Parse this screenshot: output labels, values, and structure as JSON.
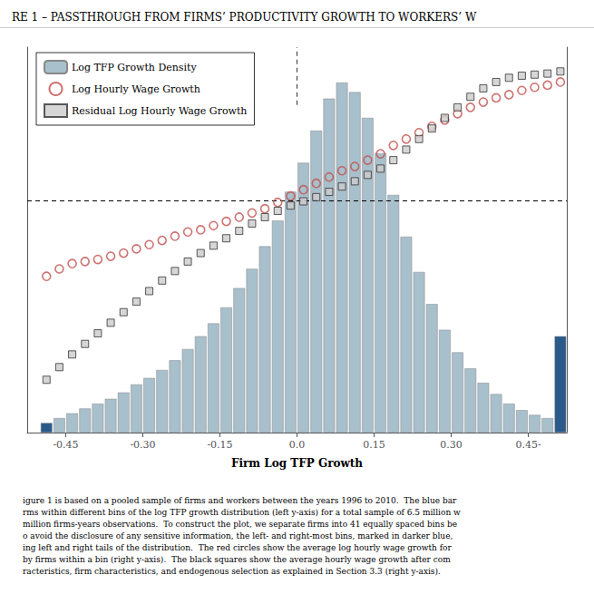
{
  "chart_data": {
    "type": "bar",
    "title": "RE 1 – PASSTHROUGH FROM FIRMS’ PRODUCTIVITY GROWTH TO WORKERS’ W",
    "x_label": "Firm Log TFP Growth",
    "x": [
      -0.4875,
      -0.4625,
      -0.4375,
      -0.4125,
      -0.3875,
      -0.3625,
      -0.3375,
      -0.3125,
      -0.2875,
      -0.2625,
      -0.2375,
      -0.2125,
      -0.1875,
      -0.1625,
      -0.1375,
      -0.1125,
      -0.0875,
      -0.0625,
      -0.0375,
      -0.0125,
      0.0125,
      0.0375,
      0.0625,
      0.0875,
      0.1125,
      0.1375,
      0.1625,
      0.1875,
      0.2125,
      0.2375,
      0.2625,
      0.2875,
      0.3125,
      0.3375,
      0.3625,
      0.3875,
      0.4125,
      0.4375,
      0.4625,
      0.4875,
      0.5125
    ],
    "series": [
      {
        "name": "Log TFP Growth Density",
        "type": "bar",
        "axis": "y",
        "color": "#a8bfcc",
        "colors": [
          "#2a5a8a",
          "#a8bfcc",
          "#a8bfcc",
          "#a8bfcc",
          "#a8bfcc",
          "#a8bfcc",
          "#a8bfcc",
          "#a8bfcc",
          "#a8bfcc",
          "#a8bfcc",
          "#a8bfcc",
          "#a8bfcc",
          "#a8bfcc",
          "#a8bfcc",
          "#a8bfcc",
          "#a8bfcc",
          "#a8bfcc",
          "#a8bfcc",
          "#a8bfcc",
          "#a8bfcc",
          "#a8bfcc",
          "#a8bfcc",
          "#a8bfcc",
          "#a8bfcc",
          "#a8bfcc",
          "#a8bfcc",
          "#a8bfcc",
          "#a8bfcc",
          "#a8bfcc",
          "#a8bfcc",
          "#a8bfcc",
          "#a8bfcc",
          "#a8bfcc",
          "#a8bfcc",
          "#a8bfcc",
          "#a8bfcc",
          "#a8bfcc",
          "#a8bfcc",
          "#a8bfcc",
          "#a8bfcc",
          "#2a5a8a"
        ],
        "values": [
          0.006,
          0.009,
          0.012,
          0.015,
          0.018,
          0.021,
          0.025,
          0.03,
          0.034,
          0.039,
          0.045,
          0.052,
          0.06,
          0.068,
          0.078,
          0.09,
          0.102,
          0.116,
          0.132,
          0.15,
          0.168,
          0.188,
          0.208,
          0.218,
          0.212,
          0.196,
          0.174,
          0.148,
          0.122,
          0.1,
          0.08,
          0.064,
          0.05,
          0.04,
          0.031,
          0.024,
          0.018,
          0.014,
          0.011,
          0.009,
          0.06
        ]
      },
      {
        "name": "Log Hourly Wage Growth",
        "type": "scatter",
        "axis": "y2",
        "color": "#c0504d",
        "marker": "circle",
        "values": [
          -0.072,
          -0.065,
          -0.06,
          -0.058,
          -0.056,
          -0.053,
          -0.05,
          -0.046,
          -0.042,
          -0.038,
          -0.034,
          -0.03,
          -0.028,
          -0.024,
          -0.02,
          -0.016,
          -0.012,
          -0.008,
          -0.002,
          0.004,
          0.01,
          0.016,
          0.022,
          0.028,
          0.032,
          0.038,
          0.044,
          0.052,
          0.058,
          0.064,
          0.07,
          0.076,
          0.082,
          0.088,
          0.093,
          0.097,
          0.1,
          0.104,
          0.107,
          0.109,
          0.112
        ]
      },
      {
        "name": "Residual Log Hourly Wage Growth",
        "type": "scatter",
        "axis": "y2",
        "color": "#cccccc",
        "marker": "square",
        "values": [
          -0.17,
          -0.158,
          -0.146,
          -0.136,
          -0.126,
          -0.116,
          -0.106,
          -0.096,
          -0.086,
          -0.076,
          -0.067,
          -0.058,
          -0.05,
          -0.043,
          -0.036,
          -0.029,
          -0.022,
          -0.016,
          -0.01,
          -0.005,
          -0.001,
          0.003,
          0.008,
          0.013,
          0.018,
          0.024,
          0.03,
          0.038,
          0.048,
          0.058,
          0.068,
          0.078,
          0.088,
          0.098,
          0.106,
          0.112,
          0.116,
          0.118,
          0.119,
          0.12,
          0.122
        ]
      }
    ],
    "xlim": [
      -0.525,
      0.525
    ],
    "xticks": [
      -0.45,
      {
        "value": -0.3,
        "label": "-0.30"
      },
      -0.15,
      {
        "value": 0.0,
        "label": "0.0"
      },
      0.15,
      {
        "value": 0.3,
        "label": "0.30"
      },
      {
        "value": 0.45,
        "label": "0.45-"
      }
    ],
    "ylim": [
      0,
      0.24
    ],
    "y2lim": [
      -0.22,
      0.145
    ],
    "tick_labels": "x",
    "grid": false,
    "legend": "upper left",
    "reference_lines": [
      {
        "axis": "y2",
        "value": 0.0,
        "line_style": "dashed"
      },
      {
        "axis": "x",
        "value": 0.0,
        "line_style": "dashed"
      }
    ],
    "annotations": [
      "igure 1 is based on a pooled sample of firms and workers between the years 1996 to 2010.  The blue bar",
      "rms within different bins of the log TFP growth distribution (left y-axis) for a total sample of 6.5 million w",
      "million firms-years observations.  To construct the plot, we separate firms into 41 equally spaced bins be",
      "o avoid the disclosure of any sensitive information, the left- and right-most bins, marked in darker blue,",
      "ing left and right tails of the distribution.  The red circles show the average log hourly wage growth for",
      "by firms within a bin (right y-axis).  The black squares show the average hourly wage growth after com",
      "racteristics, firm characteristics, and endogenous selection as explained in Section 3.3 (right y-axis)."
    ]
  }
}
